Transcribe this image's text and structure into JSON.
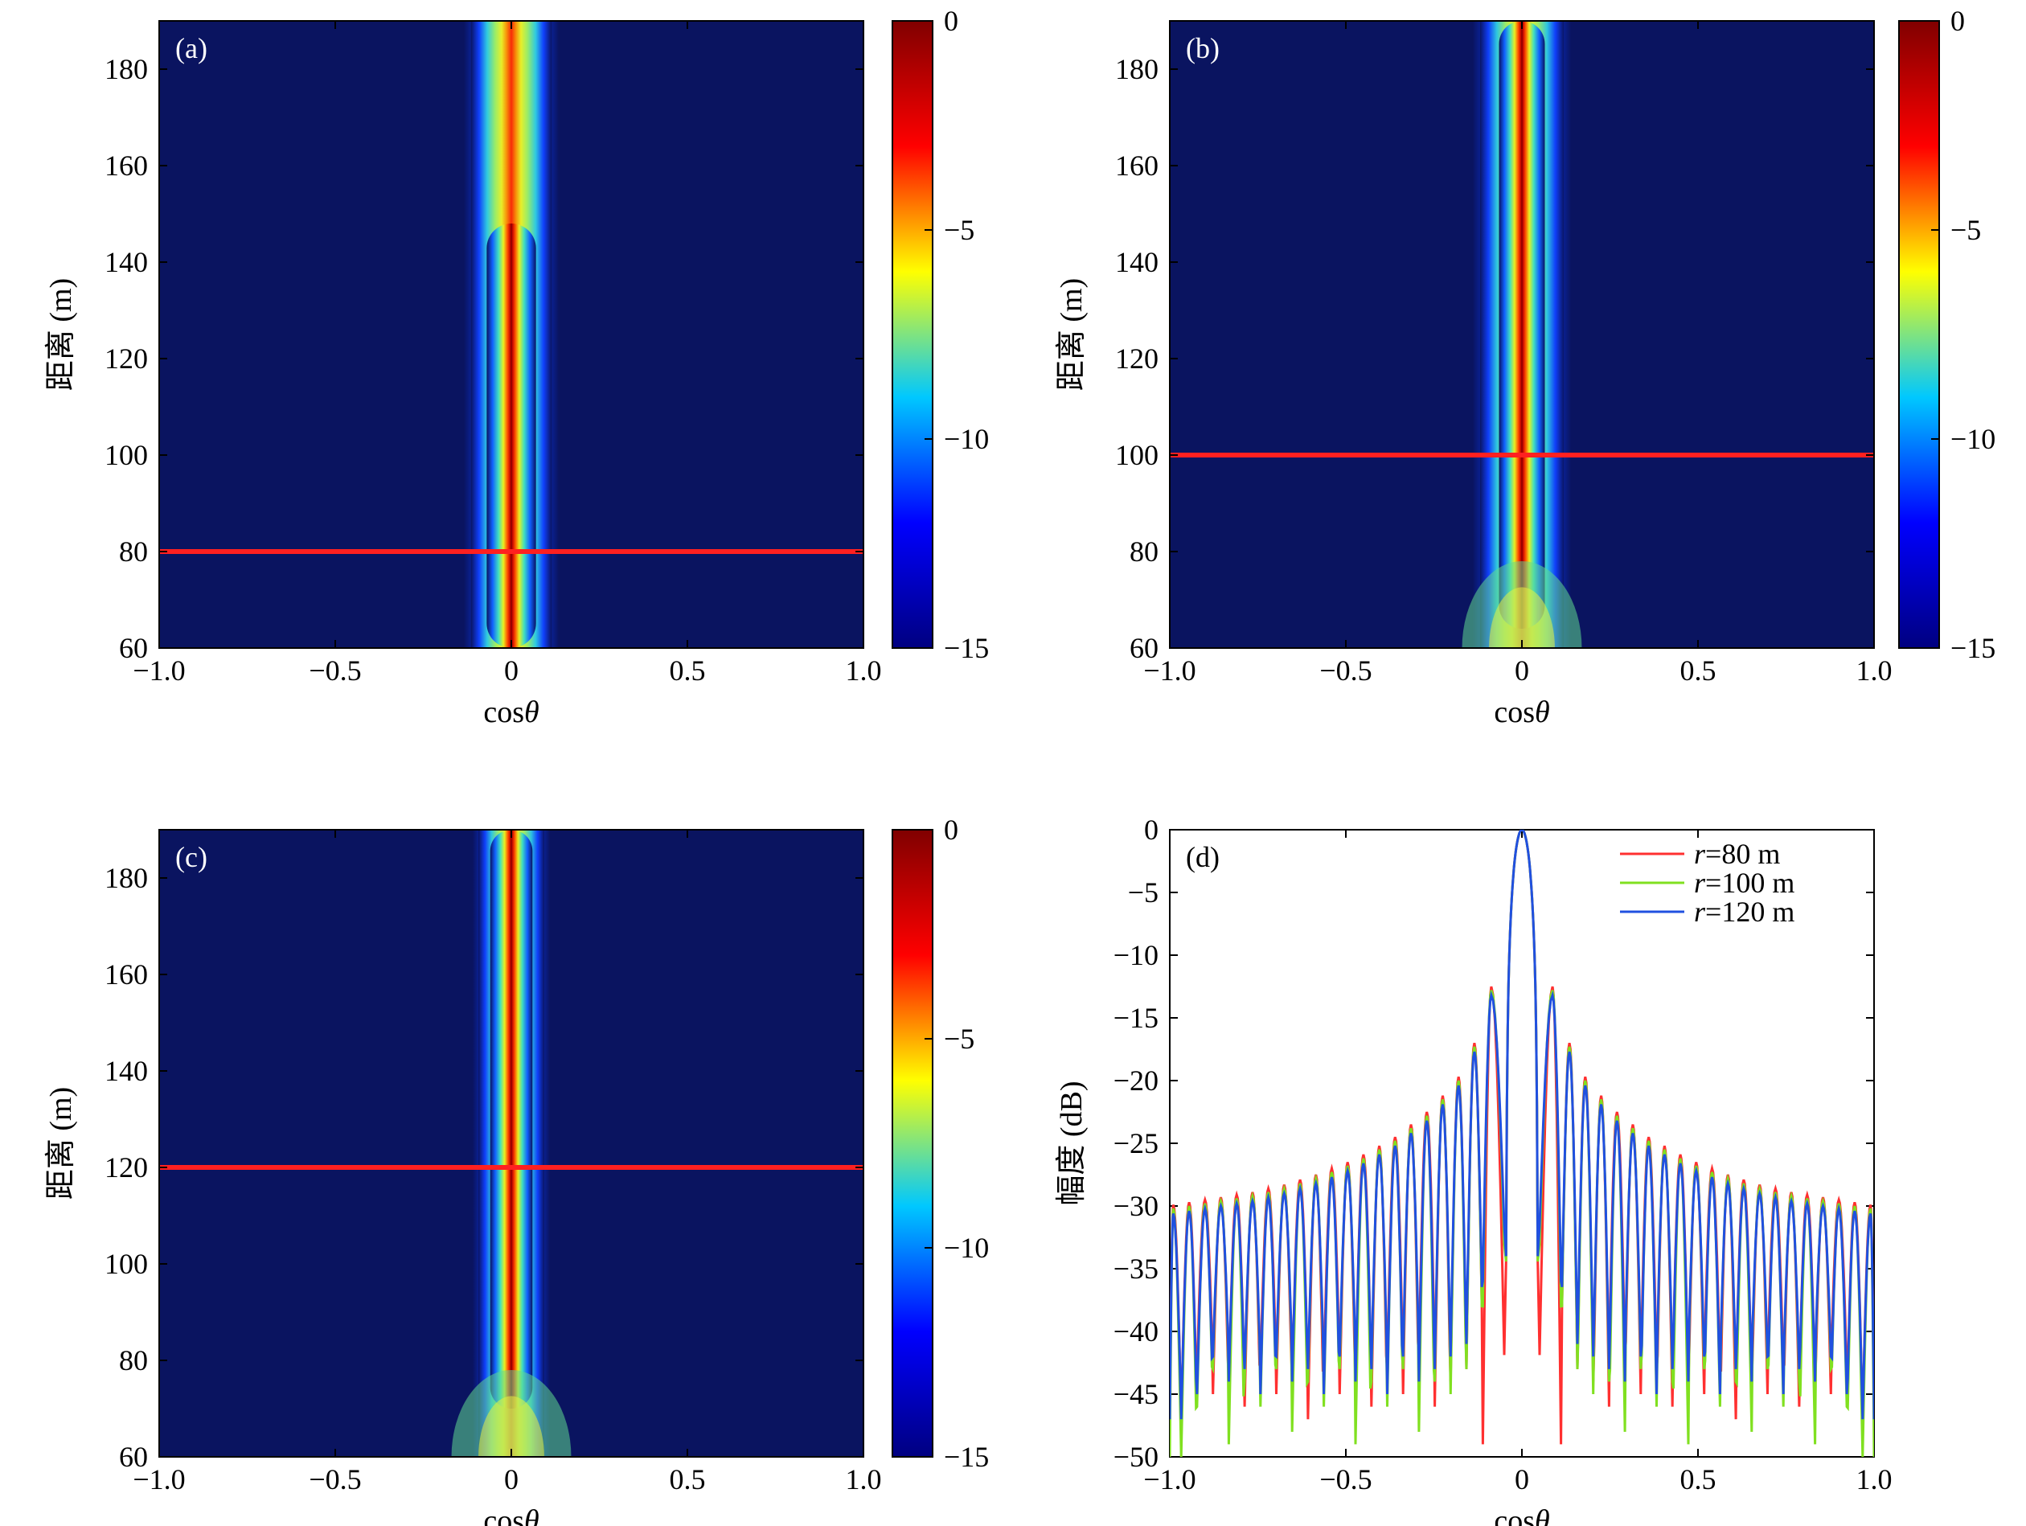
{
  "colors": {
    "cmap": [
      "#000080",
      "#0000ff",
      "#00c8ff",
      "#ffff00",
      "#ff0000",
      "#800000"
    ],
    "background_dark": "#0a1460",
    "marker_line": "#ff2020",
    "series": [
      "#ff3030",
      "#80e020",
      "#2050e0"
    ]
  },
  "chart_data": [
    {
      "type": "heatmap",
      "panel_label": "(a)",
      "xlabel": "cos",
      "xlabel_symbol": "θ",
      "ylabel": "距离 (m)",
      "xlim": [
        -1.0,
        1.0
      ],
      "ylim": [
        60,
        190
      ],
      "xticks": [
        "−1.0",
        "−0.5",
        "0",
        "0.5",
        "1.0"
      ],
      "xtick_values": [
        -1.0,
        -0.5,
        0,
        0.5,
        1.0
      ],
      "yticks": [
        "60",
        "80",
        "100",
        "120",
        "140",
        "160",
        "180"
      ],
      "ytick_values": [
        60,
        80,
        100,
        120,
        140,
        160,
        180
      ],
      "colorbar": {
        "min": -15,
        "max": 0,
        "ticks": [
          "0",
          "−5",
          "−10",
          "−15"
        ],
        "tick_values": [
          0,
          -5,
          -10,
          -15
        ]
      },
      "focus_range_m": 80,
      "marker_line_y": 80
    },
    {
      "type": "heatmap",
      "panel_label": "(b)",
      "xlabel": "cos",
      "xlabel_symbol": "θ",
      "ylabel": "距离 (m)",
      "xlim": [
        -1.0,
        1.0
      ],
      "ylim": [
        60,
        190
      ],
      "xticks": [
        "−1.0",
        "−0.5",
        "0",
        "0.5",
        "1.0"
      ],
      "xtick_values": [
        -1.0,
        -0.5,
        0,
        0.5,
        1.0
      ],
      "yticks": [
        "60",
        "80",
        "100",
        "120",
        "140",
        "160",
        "180"
      ],
      "ytick_values": [
        60,
        80,
        100,
        120,
        140,
        160,
        180
      ],
      "colorbar": {
        "min": -15,
        "max": 0,
        "ticks": [
          "0",
          "−5",
          "−10",
          "−15"
        ],
        "tick_values": [
          0,
          -5,
          -10,
          -15
        ]
      },
      "focus_range_m": 100,
      "marker_line_y": 100
    },
    {
      "type": "heatmap",
      "panel_label": "(c)",
      "xlabel": "cos",
      "xlabel_symbol": "θ",
      "ylabel": "距离 (m)",
      "xlim": [
        -1.0,
        1.0
      ],
      "ylim": [
        60,
        190
      ],
      "xticks": [
        "−1.0",
        "−0.5",
        "0",
        "0.5",
        "1.0"
      ],
      "xtick_values": [
        -1.0,
        -0.5,
        0,
        0.5,
        1.0
      ],
      "yticks": [
        "60",
        "80",
        "100",
        "120",
        "140",
        "160",
        "180"
      ],
      "ytick_values": [
        60,
        80,
        100,
        120,
        140,
        160,
        180
      ],
      "colorbar": {
        "min": -15,
        "max": 0,
        "ticks": [
          "0",
          "−5",
          "−10",
          "−15"
        ],
        "tick_values": [
          0,
          -5,
          -10,
          -15
        ]
      },
      "focus_range_m": 120,
      "marker_line_y": 120
    },
    {
      "type": "line",
      "panel_label": "(d)",
      "xlabel": "cos",
      "xlabel_symbol": "θ",
      "ylabel": "幅度 (dB)",
      "xlim": [
        -1.0,
        1.0
      ],
      "ylim": [
        -50,
        0
      ],
      "xticks": [
        "−1.0",
        "−0.5",
        "0",
        "0.5",
        "1.0"
      ],
      "xtick_values": [
        -1.0,
        -0.5,
        0,
        0.5,
        1.0
      ],
      "yticks": [
        "0",
        "−5",
        "−10",
        "−15",
        "−20",
        "−25",
        "−30",
        "−35",
        "−40",
        "−45",
        "−50"
      ],
      "ytick_values": [
        0,
        -5,
        -10,
        -15,
        -20,
        -25,
        -30,
        -35,
        -40,
        -45,
        -50
      ],
      "legend_position": "top-right",
      "sidelobe_peaks": {
        "x": [
          0.087,
          0.135,
          0.18,
          0.225,
          0.27,
          0.315,
          0.36,
          0.405,
          0.45,
          0.495,
          0.54,
          0.585,
          0.63,
          0.675,
          0.72,
          0.765,
          0.81,
          0.855,
          0.9,
          0.945,
          0.99
        ],
        "y": [
          -12.8,
          -17.3,
          -20.0,
          -21.5,
          -22.8,
          -23.8,
          -24.8,
          -25.5,
          -26.2,
          -26.8,
          -27.3,
          -27.8,
          -28.2,
          -28.6,
          -28.9,
          -29.2,
          -29.4,
          -29.6,
          -29.8,
          -30.0,
          -30.2
        ]
      },
      "series": [
        {
          "name": "r=80 m",
          "name_italic": "r",
          "name_rest": "=80 m",
          "null_depths": [
            -36,
            -49,
            -43,
            -44,
            -46,
            -42,
            -45,
            -43,
            -46,
            -44,
            -45,
            -43,
            -47,
            -44,
            -45,
            -43,
            -46,
            -44,
            -45,
            -43,
            -47
          ]
        },
        {
          "name": "r=100 m",
          "name_italic": "r",
          "name_rest": "=100 m",
          "null_depths": [
            -35,
            -38,
            -43,
            -45,
            -44,
            -48,
            -43,
            -46,
            -44,
            -49,
            -43,
            -46,
            -44,
            -48,
            -43,
            -46,
            -44,
            -49,
            -43,
            -46,
            -50
          ]
        },
        {
          "name": "r=120 m",
          "name_italic": "r",
          "name_rest": "=120 m",
          "null_depths": [
            -34,
            -36,
            -41,
            -42,
            -43,
            -44,
            -42,
            -45,
            -43,
            -44,
            -42,
            -45,
            -43,
            -44,
            -42,
            -45,
            -43,
            -44,
            -42,
            -45,
            -47
          ]
        }
      ]
    }
  ]
}
